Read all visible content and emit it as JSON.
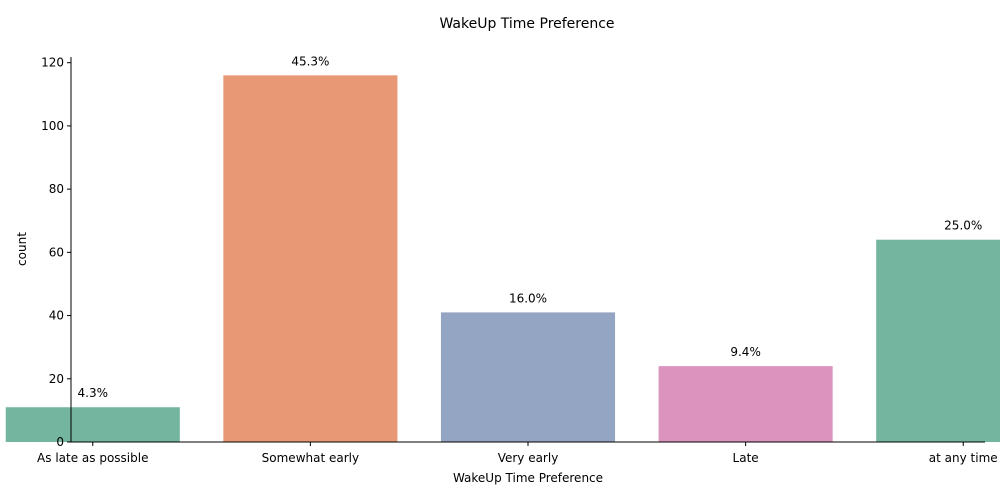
{
  "chart_data": {
    "type": "bar",
    "title": "WakeUp Time Preference",
    "xlabel": "WakeUp Time Preference",
    "ylabel": "count",
    "categories": [
      "As late as possible",
      "Somewhat early",
      "Very early",
      "Late",
      "at any time"
    ],
    "values": [
      11,
      116,
      41,
      24,
      64
    ],
    "data_labels": [
      "4.3%",
      "45.3%",
      "16.0%",
      "9.4%",
      "25.0%"
    ],
    "colors": [
      "#73b59f",
      "#e99875",
      "#94a4c3",
      "#dc94bf",
      "#73b59f"
    ],
    "ylim": [
      0,
      121.8
    ],
    "yticks": [
      0,
      20,
      40,
      60,
      80,
      100,
      120
    ],
    "grid": false,
    "legend": "none"
  }
}
